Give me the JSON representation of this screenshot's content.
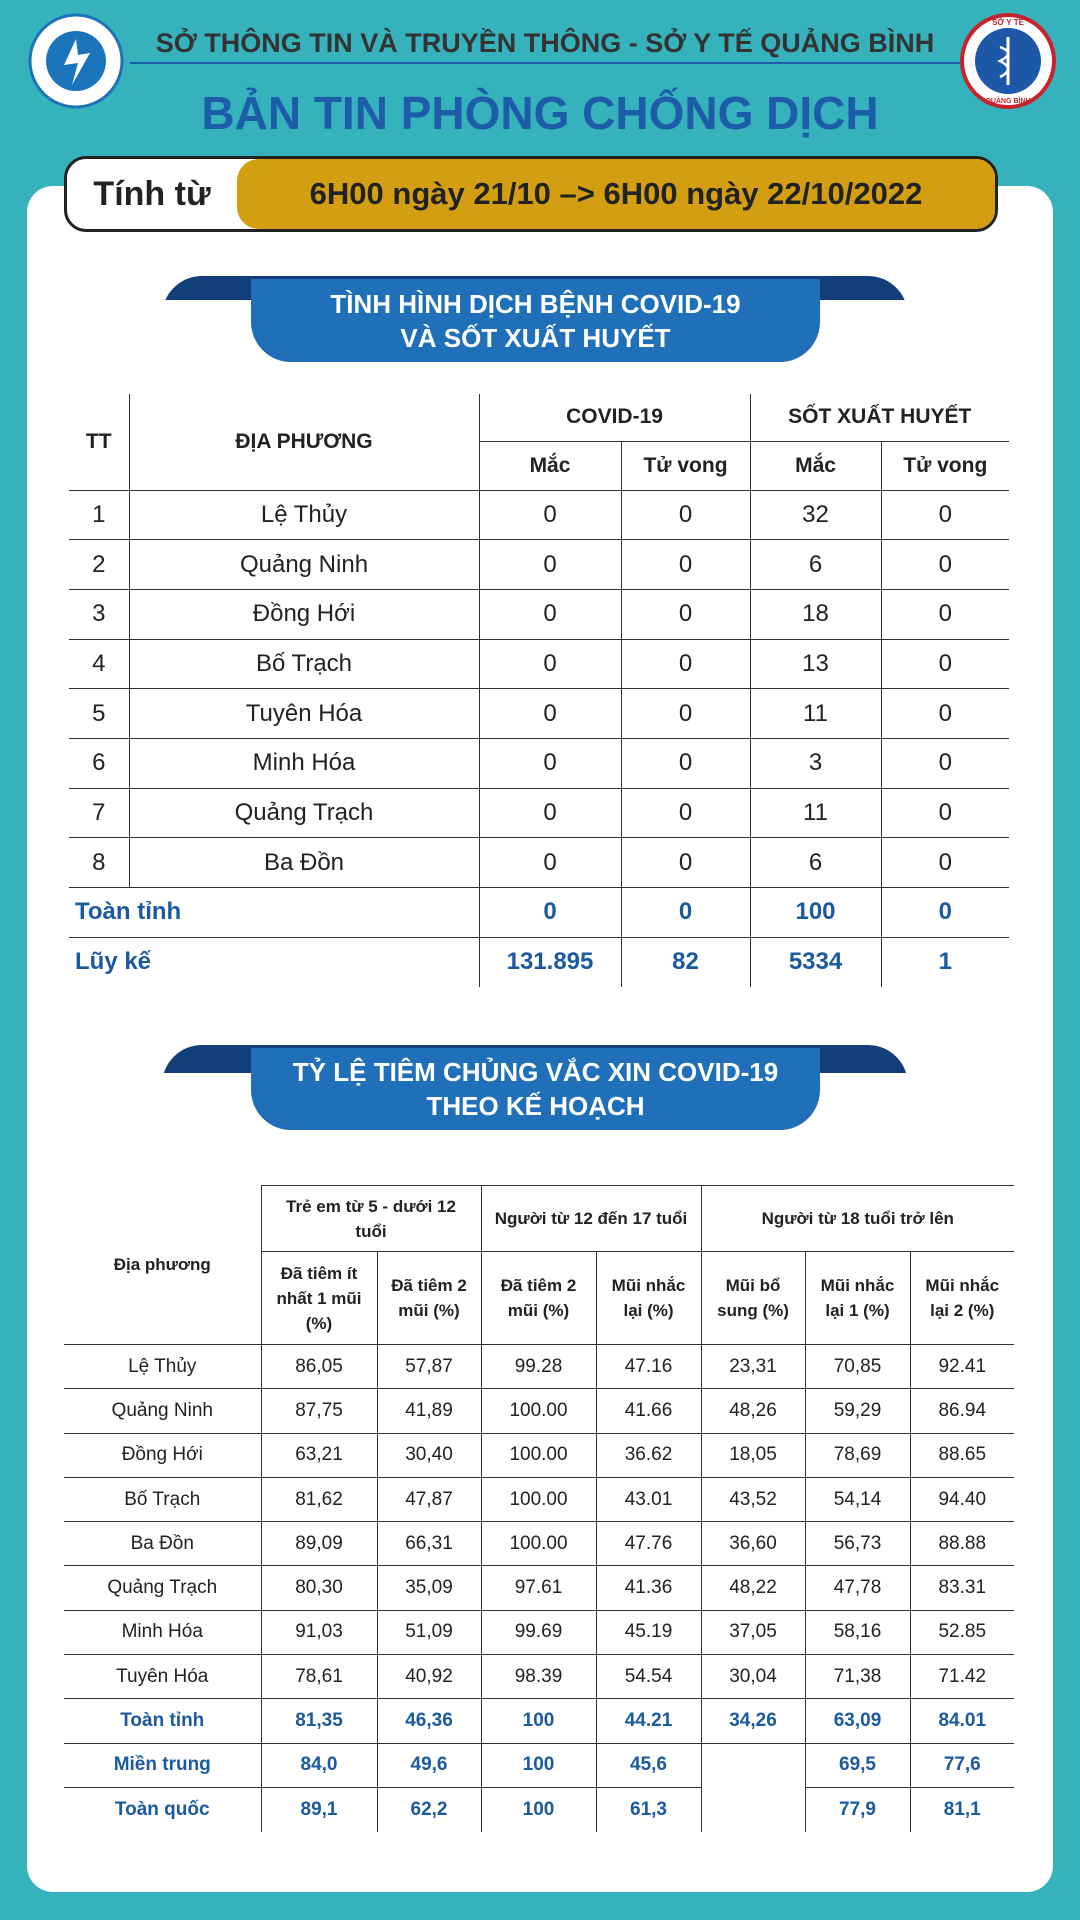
{
  "header": {
    "org": "SỞ THÔNG TIN VÀ TRUYỀN THÔNG - SỞ Y TẾ QUẢNG BÌNH",
    "title": "BẢN TIN PHÒNG CHỐNG DỊCH",
    "period_label": "Tính từ",
    "period": "6H00 ngày 21/10 –> 6H00 ngày 22/10/2022",
    "logo_right": {
      "top": "SỞ Y TẾ",
      "bottom": "QUẢNG BÌNH"
    }
  },
  "section1": {
    "title": [
      "TÌNH HÌNH DỊCH BỆNH COVID-19",
      "VÀ SỐT XUẤT HUYẾT"
    ],
    "table": {
      "headers": {
        "tt": "TT",
        "place": "ĐỊA PHƯƠNG",
        "covid": "COVID-19",
        "dengue": "SỐT XUẤT HUYẾT",
        "sub": [
          "Mắc",
          "Tử vong",
          "Mắc",
          "Tử vong"
        ]
      },
      "rows": [
        [
          1,
          "Lệ Thủy",
          0,
          0,
          32,
          0
        ],
        [
          2,
          "Quảng Ninh",
          0,
          0,
          6,
          0
        ],
        [
          3,
          "Đồng Hới",
          0,
          0,
          18,
          0
        ],
        [
          4,
          "Bố Trạch",
          0,
          0,
          13,
          0
        ],
        [
          5,
          "Tuyên Hóa",
          0,
          0,
          11,
          0
        ],
        [
          6,
          "Minh Hóa",
          0,
          0,
          3,
          0
        ],
        [
          7,
          "Quảng Trạch",
          0,
          0,
          11,
          0
        ],
        [
          8,
          "Ba Đồn",
          0,
          0,
          6,
          0
        ]
      ],
      "totals": [
        [
          "Toàn tỉnh",
          0,
          0,
          100,
          0
        ],
        [
          "Lũy kế",
          "131.895",
          82,
          5334,
          1
        ]
      ]
    }
  },
  "section2": {
    "title": [
      "TỶ LỆ TIÊM CHỦNG VẮC XIN COVID-19",
      "THEO KẾ HOẠCH"
    ],
    "table": {
      "headers": {
        "place": "Địa phương",
        "groups": [
          "Trẻ em từ 5 - dưới 12 tuổi",
          "Người từ 12 đến 17 tuổi",
          "Người từ 18 tuổi trở lên"
        ],
        "sub": [
          "Đã tiêm ít nhất 1 mũi (%)",
          "Đã tiêm 2 mũi (%)",
          "Đã tiêm 2 mũi (%)",
          "Mũi nhắc lại (%)",
          "Mũi bổ sung (%)",
          "Mũi nhắc lại 1 (%)",
          "Mũi nhắc lại 2 (%)"
        ]
      },
      "rows": [
        [
          "Lệ Thủy",
          "86,05",
          "57,87",
          "99.28",
          "47.16",
          "23,31",
          "70,85",
          "92.41"
        ],
        [
          "Quảng Ninh",
          "87,75",
          "41,89",
          "100.00",
          "41.66",
          "48,26",
          "59,29",
          "86.94"
        ],
        [
          "Đồng Hới",
          "63,21",
          "30,40",
          "100.00",
          "36.62",
          "18,05",
          "78,69",
          "88.65"
        ],
        [
          "Bố Trạch",
          "81,62",
          "47,87",
          "100.00",
          "43.01",
          "43,52",
          "54,14",
          "94.40"
        ],
        [
          "Ba Đồn",
          "89,09",
          "66,31",
          "100.00",
          "47.76",
          "36,60",
          "56,73",
          "88.88"
        ],
        [
          "Quảng Trạch",
          "80,30",
          "35,09",
          "97.61",
          "41.36",
          "48,22",
          "47,78",
          "83.31"
        ],
        [
          "Minh Hóa",
          "91,03",
          "51,09",
          "99.69",
          "45.19",
          "37,05",
          "58,16",
          "52.85"
        ],
        [
          "Tuyên Hóa",
          "78,61",
          "40,92",
          "98.39",
          "54.54",
          "30,04",
          "71,38",
          "71.42"
        ]
      ],
      "totals": [
        [
          "Toàn tỉnh",
          "81,35",
          "46,36",
          "100",
          "44.21",
          "34,26",
          "63,09",
          "84.01"
        ],
        [
          "Miền trung",
          "84,0",
          "49,6",
          "100",
          "45,6",
          null,
          "69,5",
          "77,6"
        ],
        [
          "Toàn quốc",
          "89,1",
          "62,2",
          "100",
          "61,3",
          null,
          "77,9",
          "81,1"
        ]
      ]
    }
  }
}
